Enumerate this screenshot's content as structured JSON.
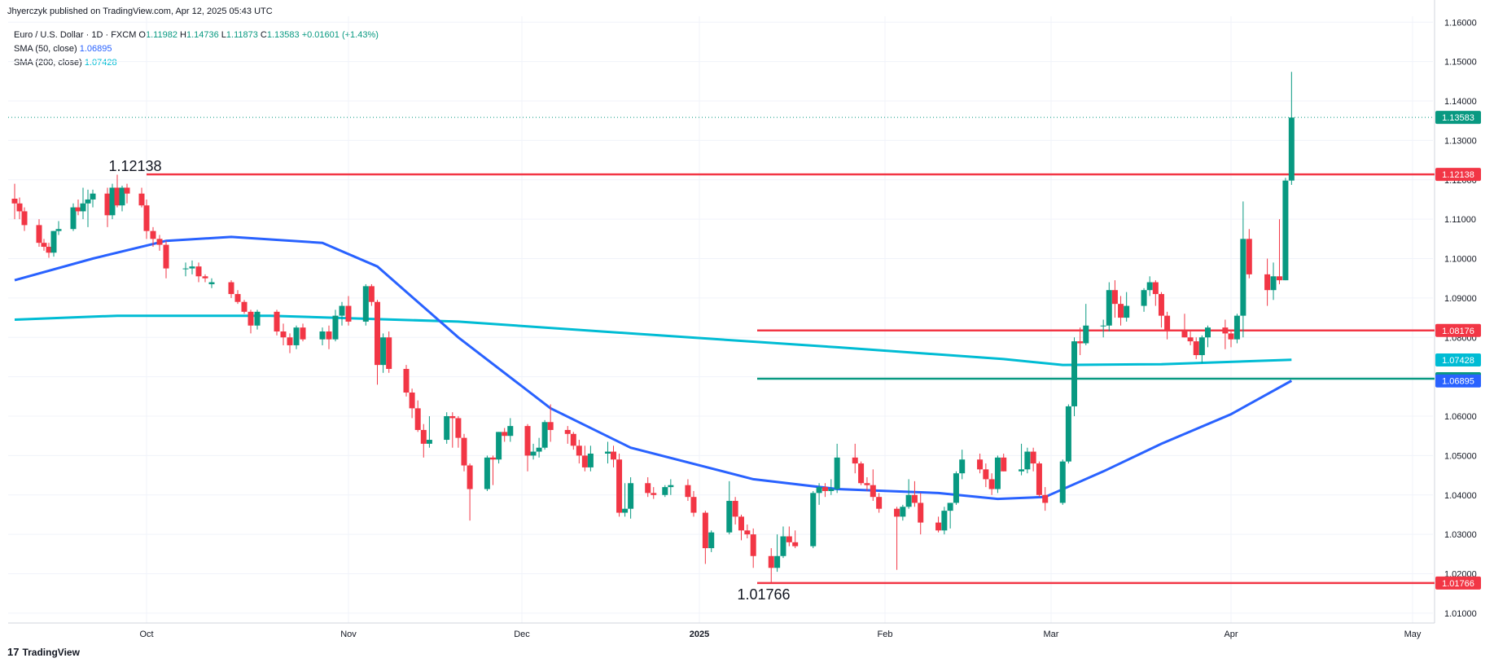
{
  "header": {
    "publisher": "Jhyerczyk published on TradingView.com, Apr 12, 2025 05:43 UTC"
  },
  "legend": {
    "symbol": "Euro / U.S. Dollar · 1D · FXCM",
    "o_label": "O",
    "o": "1.11982",
    "h_label": "H",
    "h": "1.14736",
    "l_label": "L",
    "l": "1.11873",
    "c_label": "C",
    "c": "1.13583",
    "change": "+0.01601 (+1.43%)",
    "sma50_label": "SMA (50, close)",
    "sma50_value": "1.06895",
    "sma200_label": "SMA (200, close)",
    "sma200_value": "1.07428"
  },
  "footer": {
    "logo": "17",
    "brand": "TradingView"
  },
  "colors": {
    "up": "#089981",
    "down": "#f23645",
    "sma50": "#2962ff",
    "sma200": "#00bcd4",
    "level": "#f23645",
    "support": "#089981",
    "grid": "#f0f3fa"
  },
  "chart_data": {
    "type": "candlestick",
    "x_ticks": [
      "Oct",
      "Nov",
      "Dec",
      "2025",
      "Feb",
      "Mar",
      "Apr",
      "May"
    ],
    "y_ticks": [
      "1.16000",
      "1.15000",
      "1.14000",
      "1.13000",
      "1.12000",
      "1.11000",
      "1.10000",
      "1.09000",
      "1.08000",
      "1.07000",
      "1.06000",
      "1.05000",
      "1.04000",
      "1.03000",
      "1.02000",
      "1.01000"
    ],
    "ylim": [
      1.0075,
      1.1615
    ],
    "horizontal_levels": [
      {
        "value": 1.12138,
        "label": "1.12138",
        "color": "#f23645",
        "annotation": "1.12138"
      },
      {
        "value": 1.08176,
        "label": "1.08176",
        "color": "#f23645"
      },
      {
        "value": 1.06952,
        "label": "1.06952",
        "color": "#089981"
      },
      {
        "value": 1.01766,
        "label": "1.01766",
        "color": "#f23645",
        "annotation": "1.01766"
      }
    ],
    "last_price": {
      "value": 1.13583,
      "label": "1.13583"
    },
    "sma_badges": [
      {
        "name": "SMA (200, close)",
        "value": 1.07428,
        "label": "1.07428"
      },
      {
        "name": "SMA (50, close)",
        "value": 1.06895,
        "label": "1.06895"
      }
    ],
    "candles": [
      [
        "2024-09-04",
        1.1152,
        1.119,
        1.11,
        1.114
      ],
      [
        "2024-09-05",
        1.114,
        1.1155,
        1.11,
        1.112
      ],
      [
        "2024-09-06",
        1.112,
        1.113,
        1.107,
        1.1085
      ],
      [
        "2024-09-09",
        1.1085,
        1.11,
        1.103,
        1.104
      ],
      [
        "2024-09-10",
        1.104,
        1.105,
        1.102,
        1.103
      ],
      [
        "2024-09-11",
        1.103,
        1.104,
        1.1002,
        1.1015
      ],
      [
        "2024-09-12",
        1.1015,
        1.107,
        1.1005,
        1.107
      ],
      [
        "2024-09-13",
        1.107,
        1.1095,
        1.106,
        1.1075
      ],
      [
        "2024-09-16",
        1.1075,
        1.114,
        1.107,
        1.113
      ],
      [
        "2024-09-17",
        1.113,
        1.115,
        1.111,
        1.112
      ],
      [
        "2024-09-18",
        1.112,
        1.118,
        1.11,
        1.114
      ],
      [
        "2024-09-19",
        1.114,
        1.1175,
        1.108,
        1.115
      ],
      [
        "2024-09-20",
        1.115,
        1.1175,
        1.113,
        1.1165
      ],
      [
        "2024-09-23",
        1.1165,
        1.118,
        1.108,
        1.111
      ],
      [
        "2024-09-24",
        1.111,
        1.119,
        1.11,
        1.118
      ],
      [
        "2024-09-25",
        1.118,
        1.1213,
        1.113,
        1.1135
      ],
      [
        "2024-09-26",
        1.1135,
        1.1185,
        1.112,
        1.118
      ],
      [
        "2024-09-27",
        1.118,
        1.119,
        1.114,
        1.1165
      ],
      [
        "2024-09-30",
        1.1165,
        1.118,
        1.113,
        1.1135
      ],
      [
        "2024-10-01",
        1.1135,
        1.115,
        1.105,
        1.107
      ],
      [
        "2024-10-02",
        1.107,
        1.108,
        1.103,
        1.105
      ],
      [
        "2024-10-03",
        1.105,
        1.106,
        1.102,
        1.1035
      ],
      [
        "2024-10-04",
        1.1035,
        1.1045,
        1.095,
        1.0975
      ],
      [
        "2024-10-07",
        1.0975,
        1.099,
        1.0955,
        1.0975
      ],
      [
        "2024-10-08",
        1.0975,
        1.0995,
        1.096,
        1.098
      ],
      [
        "2024-10-09",
        1.098,
        1.099,
        1.094,
        1.0955
      ],
      [
        "2024-10-10",
        1.0955,
        1.096,
        1.094,
        1.095
      ],
      [
        "2024-10-11",
        1.0935,
        1.095,
        1.0925,
        1.094
      ],
      [
        "2024-10-14",
        1.094,
        1.0945,
        1.09,
        1.091
      ],
      [
        "2024-10-15",
        1.091,
        1.092,
        1.0885,
        1.089
      ],
      [
        "2024-10-16",
        1.089,
        1.0895,
        1.086,
        1.0865
      ],
      [
        "2024-10-17",
        1.0865,
        1.087,
        1.081,
        1.083
      ],
      [
        "2024-10-18",
        1.083,
        1.087,
        1.082,
        1.0865
      ],
      [
        "2024-10-21",
        1.0865,
        1.087,
        1.0805,
        1.0815
      ],
      [
        "2024-10-22",
        1.0815,
        1.0835,
        1.078,
        1.08
      ],
      [
        "2024-10-23",
        1.08,
        1.081,
        1.076,
        1.078
      ],
      [
        "2024-10-24",
        1.078,
        1.083,
        1.077,
        1.0825
      ],
      [
        "2024-10-25",
        1.0825,
        1.0835,
        1.079,
        1.0795
      ],
      [
        "2024-10-28",
        1.0795,
        1.0825,
        1.078,
        1.0815
      ],
      [
        "2024-10-29",
        1.0815,
        1.083,
        1.077,
        1.0795
      ],
      [
        "2024-10-30",
        1.0795,
        1.087,
        1.079,
        1.0855
      ],
      [
        "2024-10-31",
        1.0855,
        1.089,
        1.083,
        1.088
      ],
      [
        "2024-11-01",
        1.088,
        1.0905,
        1.083,
        1.084
      ],
      [
        "2024-11-04",
        1.084,
        1.0935,
        1.083,
        1.093
      ],
      [
        "2024-11-05",
        1.093,
        1.0935,
        1.088,
        1.089
      ],
      [
        "2024-11-06",
        1.089,
        1.0895,
        1.068,
        1.073
      ],
      [
        "2024-11-07",
        1.073,
        1.081,
        1.071,
        1.08
      ],
      [
        "2024-11-08",
        1.08,
        1.0815,
        1.071,
        1.072
      ],
      [
        "2024-11-11",
        1.072,
        1.073,
        1.065,
        1.066
      ],
      [
        "2024-11-12",
        1.066,
        1.067,
        1.0595,
        1.062
      ],
      [
        "2024-11-13",
        1.062,
        1.064,
        1.056,
        1.0565
      ],
      [
        "2024-11-14",
        1.0565,
        1.058,
        1.0495,
        1.053
      ],
      [
        "2024-11-15",
        1.053,
        1.06,
        1.052,
        1.054
      ],
      [
        "2024-11-18",
        1.054,
        1.061,
        1.053,
        1.06
      ],
      [
        "2024-11-19",
        1.06,
        1.061,
        1.052,
        1.0595
      ],
      [
        "2024-11-20",
        1.0595,
        1.06,
        1.052,
        1.0545
      ],
      [
        "2024-11-21",
        1.0545,
        1.0555,
        1.046,
        1.0475
      ],
      [
        "2024-11-22",
        1.0475,
        1.048,
        1.0335,
        1.0415
      ],
      [
        "2024-11-25",
        1.0415,
        1.05,
        1.041,
        1.0495
      ],
      [
        "2024-11-26",
        1.0495,
        1.05,
        1.0425,
        1.049
      ],
      [
        "2024-11-27",
        1.049,
        1.056,
        1.048,
        1.056
      ],
      [
        "2024-11-28",
        1.056,
        1.057,
        1.0535,
        1.055
      ],
      [
        "2024-11-29",
        1.055,
        1.0595,
        1.0535,
        1.0575
      ],
      [
        "2024-12-02",
        1.0575,
        1.058,
        1.046,
        1.05
      ],
      [
        "2024-12-03",
        1.05,
        1.053,
        1.049,
        1.051
      ],
      [
        "2024-12-04",
        1.051,
        1.0545,
        1.0495,
        1.052
      ],
      [
        "2024-12-05",
        1.052,
        1.059,
        1.0515,
        1.0585
      ],
      [
        "2024-12-06",
        1.0585,
        1.063,
        1.0535,
        1.0565
      ],
      [
        "2024-12-09",
        1.0565,
        1.0575,
        1.053,
        1.0555
      ],
      [
        "2024-12-10",
        1.0555,
        1.056,
        1.0515,
        1.0525
      ],
      [
        "2024-12-11",
        1.0525,
        1.054,
        1.048,
        1.05
      ],
      [
        "2024-12-12",
        1.05,
        1.0525,
        1.046,
        1.047
      ],
      [
        "2024-12-13",
        1.047,
        1.0525,
        1.046,
        1.0505
      ],
      [
        "2024-12-16",
        1.0505,
        1.0535,
        1.048,
        1.051
      ],
      [
        "2024-12-17",
        1.051,
        1.0525,
        1.047,
        1.049
      ],
      [
        "2024-12-18",
        1.049,
        1.0505,
        1.0345,
        1.0355
      ],
      [
        "2024-12-19",
        1.0355,
        1.043,
        1.0345,
        1.0365
      ],
      [
        "2024-12-20",
        1.0365,
        1.0445,
        1.034,
        1.043
      ],
      [
        "2024-12-23",
        1.043,
        1.0445,
        1.0395,
        1.0405
      ],
      [
        "2024-12-24",
        1.0405,
        1.042,
        1.039,
        1.04
      ],
      [
        "2024-12-26",
        1.04,
        1.0425,
        1.0395,
        1.042
      ],
      [
        "2024-12-27",
        1.042,
        1.044,
        1.04,
        1.0425
      ],
      [
        "2024-12-30",
        1.0425,
        1.044,
        1.0385,
        1.0395
      ],
      [
        "2024-12-31",
        1.0395,
        1.041,
        1.0345,
        1.0355
      ],
      [
        "2025-01-02",
        1.0355,
        1.036,
        1.0225,
        1.0265
      ],
      [
        "2025-01-03",
        1.0265,
        1.031,
        1.0255,
        1.0305
      ],
      [
        "2025-01-06",
        1.0305,
        1.0435,
        1.03,
        1.0385
      ],
      [
        "2025-01-07",
        1.0385,
        1.0395,
        1.0325,
        1.0345
      ],
      [
        "2025-01-08",
        1.0345,
        1.035,
        1.0285,
        1.031
      ],
      [
        "2025-01-09",
        1.031,
        1.0325,
        1.029,
        1.03
      ],
      [
        "2025-01-10",
        1.03,
        1.0315,
        1.0215,
        1.0245
      ],
      [
        "2025-01-13",
        1.0245,
        1.0265,
        1.0177,
        1.0215
      ],
      [
        "2025-01-14",
        1.0215,
        1.03,
        1.0205,
        1.0245
      ],
      [
        "2025-01-15",
        1.0245,
        1.032,
        1.024,
        1.0295
      ],
      [
        "2025-01-16",
        1.0295,
        1.032,
        1.027,
        1.028
      ],
      [
        "2025-01-17",
        1.028,
        1.031,
        1.0265,
        1.027
      ],
      [
        "2025-01-20",
        1.027,
        1.041,
        1.0265,
        1.0405
      ],
      [
        "2025-01-21",
        1.0405,
        1.043,
        1.0375,
        1.042
      ],
      [
        "2025-01-22",
        1.042,
        1.043,
        1.0395,
        1.041
      ],
      [
        "2025-01-23",
        1.041,
        1.044,
        1.04,
        1.0415
      ],
      [
        "2025-01-24",
        1.0415,
        1.053,
        1.0405,
        1.0495
      ],
      [
        "2025-01-27",
        1.0495,
        1.053,
        1.0455,
        1.048
      ],
      [
        "2025-01-28",
        1.048,
        1.0485,
        1.0425,
        1.043
      ],
      [
        "2025-01-29",
        1.043,
        1.0445,
        1.041,
        1.0425
      ],
      [
        "2025-01-30",
        1.0425,
        1.0465,
        1.0385,
        1.0395
      ],
      [
        "2025-01-31",
        1.0395,
        1.0405,
        1.0355,
        1.0365
      ],
      [
        "2025-02-03",
        1.0365,
        1.037,
        1.021,
        1.0345
      ],
      [
        "2025-02-04",
        1.0345,
        1.0375,
        1.0335,
        1.037
      ],
      [
        "2025-02-05",
        1.037,
        1.044,
        1.0365,
        1.04
      ],
      [
        "2025-02-06",
        1.04,
        1.0435,
        1.037,
        1.038
      ],
      [
        "2025-02-07",
        1.038,
        1.0405,
        1.03,
        1.033
      ],
      [
        "2025-02-10",
        1.033,
        1.0345,
        1.0305,
        1.031
      ],
      [
        "2025-02-11",
        1.031,
        1.037,
        1.03,
        1.036
      ],
      [
        "2025-02-12",
        1.036,
        1.038,
        1.0315,
        1.038
      ],
      [
        "2025-02-13",
        1.038,
        1.046,
        1.0375,
        1.0455
      ],
      [
        "2025-02-14",
        1.0455,
        1.0515,
        1.044,
        1.049
      ],
      [
        "2025-02-17",
        1.049,
        1.0505,
        1.0455,
        1.0465
      ],
      [
        "2025-02-18",
        1.0465,
        1.048,
        1.042,
        1.044
      ],
      [
        "2025-02-19",
        1.044,
        1.0455,
        1.04,
        1.0415
      ],
      [
        "2025-02-20",
        1.0415,
        1.05,
        1.0405,
        1.0495
      ],
      [
        "2025-02-21",
        1.0495,
        1.0505,
        1.046,
        1.046
      ],
      [
        "2025-02-24",
        1.046,
        1.053,
        1.045,
        1.0465
      ],
      [
        "2025-02-25",
        1.0465,
        1.052,
        1.0455,
        1.051
      ],
      [
        "2025-02-26",
        1.051,
        1.052,
        1.046,
        1.048
      ],
      [
        "2025-02-27",
        1.048,
        1.0485,
        1.0395,
        1.04
      ],
      [
        "2025-02-28",
        1.04,
        1.042,
        1.036,
        1.038
      ],
      [
        "2025-03-03",
        1.038,
        1.049,
        1.0375,
        1.0485
      ],
      [
        "2025-03-04",
        1.0485,
        1.063,
        1.048,
        1.0625
      ],
      [
        "2025-03-05",
        1.0625,
        1.08,
        1.06,
        1.079
      ],
      [
        "2025-03-06",
        1.079,
        1.0825,
        1.0755,
        1.0785
      ],
      [
        "2025-03-07",
        1.0785,
        1.0885,
        1.078,
        1.083
      ],
      [
        "2025-03-10",
        1.083,
        1.0845,
        1.08,
        1.083
      ],
      [
        "2025-03-11",
        1.083,
        1.094,
        1.0815,
        1.092
      ],
      [
        "2025-03-12",
        1.092,
        1.0945,
        1.085,
        1.0885
      ],
      [
        "2025-03-13",
        1.0885,
        1.0905,
        1.083,
        1.085
      ],
      [
        "2025-03-14",
        1.085,
        1.0915,
        1.084,
        1.088
      ],
      [
        "2025-03-17",
        1.088,
        1.0925,
        1.0865,
        1.092
      ],
      [
        "2025-03-18",
        1.092,
        1.0955,
        1.0905,
        1.094
      ],
      [
        "2025-03-19",
        1.094,
        1.0945,
        1.088,
        1.091
      ],
      [
        "2025-03-20",
        1.091,
        1.0915,
        1.0825,
        1.0855
      ],
      [
        "2025-03-21",
        1.0855,
        1.0865,
        1.0795,
        1.082
      ],
      [
        "2025-03-24",
        1.082,
        1.086,
        1.08,
        1.08
      ],
      [
        "2025-03-25",
        1.08,
        1.0815,
        1.078,
        1.079
      ],
      [
        "2025-03-26",
        1.079,
        1.08,
        1.0745,
        1.0755
      ],
      [
        "2025-03-27",
        1.0755,
        1.0805,
        1.0735,
        1.08
      ],
      [
        "2025-03-28",
        1.08,
        1.083,
        1.0775,
        1.0825
      ],
      [
        "2025-03-31",
        1.0825,
        1.0845,
        1.077,
        1.081
      ],
      [
        "2025-04-01",
        1.081,
        1.082,
        1.0775,
        1.0795
      ],
      [
        "2025-04-02",
        1.0795,
        1.086,
        1.0785,
        1.0855
      ],
      [
        "2025-04-03",
        1.0855,
        1.1145,
        1.08,
        1.105
      ],
      [
        "2025-04-04",
        1.105,
        1.1075,
        1.095,
        1.096
      ],
      [
        "2025-04-07",
        1.096,
        1.1,
        1.088,
        1.092
      ],
      [
        "2025-04-08",
        1.092,
        1.099,
        1.0895,
        1.0955
      ],
      [
        "2025-04-09",
        1.0955,
        1.11,
        1.0935,
        1.0945
      ],
      [
        "2025-04-10",
        1.0945,
        1.1205,
        1.0945,
        1.1198
      ],
      [
        "2025-04-11",
        1.1198,
        1.1474,
        1.1187,
        1.1358
      ]
    ],
    "sma50_path": [
      [
        "2024-09-04",
        1.0945
      ],
      [
        "2024-09-20",
        1.1
      ],
      [
        "2024-10-04",
        1.1045
      ],
      [
        "2024-10-14",
        1.1055
      ],
      [
        "2024-10-28",
        1.104
      ],
      [
        "2024-11-06",
        1.098
      ],
      [
        "2024-11-20",
        1.08
      ],
      [
        "2024-12-06",
        1.062
      ],
      [
        "2024-12-20",
        1.052
      ],
      [
        "2025-01-10",
        1.044
      ],
      [
        "2025-01-24",
        1.0415
      ],
      [
        "2025-02-10",
        1.0405
      ],
      [
        "2025-02-20",
        1.039
      ],
      [
        "2025-02-28",
        1.0395
      ],
      [
        "2025-03-10",
        1.046
      ],
      [
        "2025-03-20",
        1.053
      ],
      [
        "2025-04-01",
        1.0605
      ],
      [
        "2025-04-11",
        1.069
      ]
    ],
    "sma200_path": [
      [
        "2024-09-04",
        1.0845
      ],
      [
        "2024-09-25",
        1.0855
      ],
      [
        "2024-10-20",
        1.0855
      ],
      [
        "2024-11-20",
        1.084
      ],
      [
        "2024-12-20",
        1.081
      ],
      [
        "2025-01-24",
        1.0775
      ],
      [
        "2025-02-21",
        1.0745
      ],
      [
        "2025-03-03",
        1.073
      ],
      [
        "2025-03-20",
        1.0732
      ],
      [
        "2025-04-11",
        1.0743
      ]
    ]
  }
}
